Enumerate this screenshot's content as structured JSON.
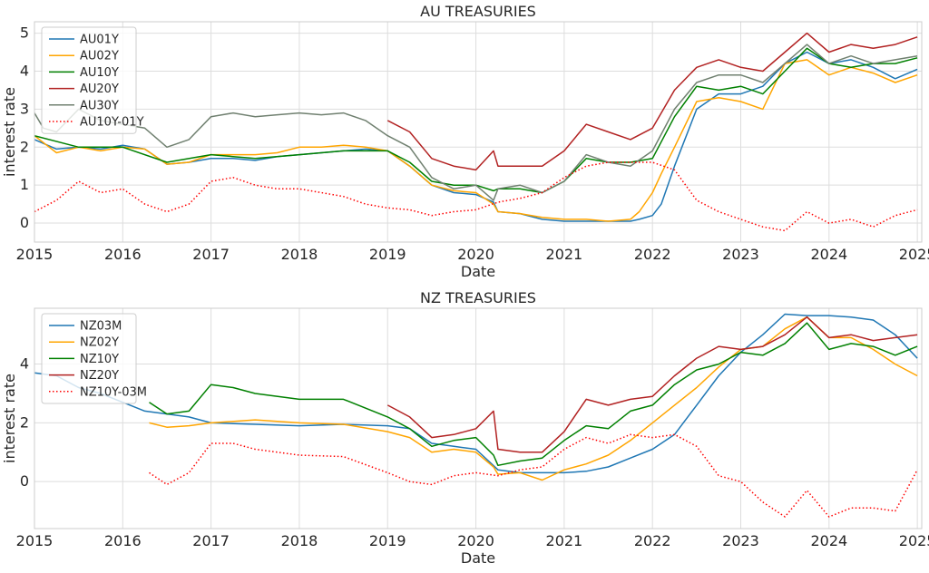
{
  "chart_data": [
    {
      "type": "line",
      "title": "AU TREASURIES",
      "xlabel": "Date",
      "ylabel": "interest rate",
      "xlim": [
        2015.0,
        2025.05
      ],
      "ylim": [
        -0.5,
        5.3
      ],
      "xticks": [
        2015,
        2016,
        2017,
        2018,
        2019,
        2020,
        2021,
        2022,
        2023,
        2024,
        2025
      ],
      "yticks": [
        0,
        1,
        2,
        3,
        4,
        5
      ],
      "grid": true,
      "legend_position": "top-left",
      "series": [
        {
          "name": "AU01Y",
          "color": "#1f77b4",
          "style": "solid",
          "x": [
            2015.0,
            2015.25,
            2015.5,
            2015.75,
            2016.0,
            2016.25,
            2016.5,
            2016.75,
            2017.0,
            2017.25,
            2017.5,
            2017.75,
            2018.0,
            2018.25,
            2018.5,
            2018.75,
            2019.0,
            2019.25,
            2019.5,
            2019.75,
            2020.0,
            2020.2,
            2020.25,
            2020.5,
            2020.75,
            2021.0,
            2021.25,
            2021.5,
            2021.75,
            2021.85,
            2022.0,
            2022.1,
            2022.25,
            2022.5,
            2022.75,
            2023.0,
            2023.25,
            2023.5,
            2023.75,
            2024.0,
            2024.25,
            2024.5,
            2024.75,
            2025.0
          ],
          "y": [
            2.2,
            1.95,
            2.0,
            1.95,
            2.05,
            1.95,
            1.55,
            1.6,
            1.7,
            1.7,
            1.65,
            1.75,
            1.8,
            1.85,
            1.9,
            1.95,
            1.9,
            1.5,
            1.0,
            0.8,
            0.75,
            0.55,
            0.3,
            0.25,
            0.1,
            0.05,
            0.05,
            0.05,
            0.05,
            0.1,
            0.2,
            0.5,
            1.5,
            3.0,
            3.4,
            3.4,
            3.6,
            4.2,
            4.5,
            4.2,
            4.3,
            4.1,
            3.8,
            4.05
          ]
        },
        {
          "name": "AU02Y",
          "color": "#ffa500",
          "style": "solid",
          "x": [
            2015.0,
            2015.25,
            2015.5,
            2015.75,
            2016.0,
            2016.25,
            2016.5,
            2016.75,
            2017.0,
            2017.25,
            2017.5,
            2017.75,
            2018.0,
            2018.25,
            2018.5,
            2018.75,
            2019.0,
            2019.25,
            2019.5,
            2019.75,
            2020.0,
            2020.2,
            2020.25,
            2020.5,
            2020.75,
            2021.0,
            2021.25,
            2021.5,
            2021.75,
            2021.85,
            2022.0,
            2022.1,
            2022.25,
            2022.5,
            2022.75,
            2023.0,
            2023.25,
            2023.5,
            2023.75,
            2024.0,
            2024.25,
            2024.5,
            2024.75,
            2025.0
          ],
          "y": [
            2.3,
            1.85,
            2.0,
            1.9,
            2.0,
            1.95,
            1.55,
            1.6,
            1.8,
            1.8,
            1.8,
            1.85,
            2.0,
            2.0,
            2.05,
            2.0,
            1.9,
            1.5,
            1.0,
            0.85,
            0.8,
            0.5,
            0.3,
            0.25,
            0.15,
            0.1,
            0.1,
            0.05,
            0.1,
            0.3,
            0.8,
            1.3,
            2.0,
            3.2,
            3.3,
            3.2,
            3.0,
            4.2,
            4.3,
            3.9,
            4.1,
            3.95,
            3.7,
            3.9
          ]
        },
        {
          "name": "AU10Y",
          "color": "#008000",
          "style": "solid",
          "x": [
            2015.0,
            2015.5,
            2016.0,
            2016.5,
            2017.0,
            2017.5,
            2018.0,
            2018.5,
            2019.0,
            2019.25,
            2019.5,
            2019.75,
            2020.0,
            2020.2,
            2020.25,
            2020.5,
            2020.75,
            2021.0,
            2021.25,
            2021.5,
            2021.75,
            2022.0,
            2022.25,
            2022.5,
            2022.75,
            2023.0,
            2023.25,
            2023.5,
            2023.75,
            2024.0,
            2024.25,
            2024.5,
            2024.75,
            2025.0
          ],
          "y": [
            2.3,
            2.0,
            2.0,
            1.6,
            1.8,
            1.7,
            1.8,
            1.9,
            1.9,
            1.6,
            1.1,
            1.0,
            1.0,
            0.85,
            0.9,
            0.9,
            0.8,
            1.1,
            1.7,
            1.6,
            1.6,
            1.7,
            2.8,
            3.6,
            3.5,
            3.6,
            3.4,
            4.0,
            4.6,
            4.2,
            4.1,
            4.2,
            4.2,
            4.35
          ]
        },
        {
          "name": "AU20Y",
          "color": "#b22222",
          "style": "solid",
          "x": [
            2019.0,
            2019.25,
            2019.5,
            2019.75,
            2020.0,
            2020.2,
            2020.25,
            2020.5,
            2020.75,
            2021.0,
            2021.25,
            2021.5,
            2021.75,
            2022.0,
            2022.25,
            2022.5,
            2022.75,
            2023.0,
            2023.25,
            2023.5,
            2023.75,
            2024.0,
            2024.25,
            2024.5,
            2024.75,
            2025.0
          ],
          "y": [
            2.7,
            2.4,
            1.7,
            1.5,
            1.4,
            1.9,
            1.5,
            1.5,
            1.5,
            1.9,
            2.6,
            2.4,
            2.2,
            2.5,
            3.5,
            4.1,
            4.3,
            4.1,
            4.0,
            4.5,
            5.0,
            4.5,
            4.7,
            4.6,
            4.7,
            4.9
          ]
        },
        {
          "name": "AU30Y",
          "color": "#708070",
          "style": "solid",
          "x": [
            2015.0,
            2015.1,
            2015.25,
            2015.5,
            2015.75,
            2016.0,
            2016.25,
            2016.5,
            2016.75,
            2017.0,
            2017.25,
            2017.5,
            2017.75,
            2018.0,
            2018.25,
            2018.5,
            2018.75,
            2019.0,
            2019.25,
            2019.5,
            2019.75,
            2020.0,
            2020.2,
            2020.25,
            2020.5,
            2020.75,
            2021.0,
            2021.25,
            2021.5,
            2021.75,
            2022.0,
            2022.25,
            2022.5,
            2022.75,
            2023.0,
            2023.25,
            2023.5,
            2023.75,
            2024.0,
            2024.25,
            2024.5,
            2024.75,
            2025.0
          ],
          "y": [
            2.9,
            2.5,
            2.4,
            3.0,
            2.7,
            2.6,
            2.5,
            2.0,
            2.2,
            2.8,
            2.9,
            2.8,
            2.85,
            2.9,
            2.85,
            2.9,
            2.7,
            2.3,
            2.0,
            1.2,
            0.9,
            1.0,
            0.6,
            0.9,
            1.0,
            0.8,
            1.1,
            1.8,
            1.6,
            1.5,
            1.9,
            3.0,
            3.7,
            3.9,
            3.9,
            3.7,
            4.2,
            4.7,
            4.2,
            4.4,
            4.2,
            4.3,
            4.4
          ]
        },
        {
          "name": "AU10Y-01Y",
          "color": "#ff0000",
          "style": "dotted",
          "x": [
            2015.0,
            2015.25,
            2015.5,
            2015.75,
            2016.0,
            2016.25,
            2016.5,
            2016.75,
            2017.0,
            2017.25,
            2017.5,
            2017.75,
            2018.0,
            2018.25,
            2018.5,
            2018.75,
            2019.0,
            2019.25,
            2019.5,
            2019.75,
            2020.0,
            2020.25,
            2020.5,
            2020.75,
            2021.0,
            2021.25,
            2021.5,
            2021.75,
            2022.0,
            2022.25,
            2022.5,
            2022.75,
            2023.0,
            2023.25,
            2023.5,
            2023.75,
            2024.0,
            2024.25,
            2024.5,
            2024.75,
            2025.0
          ],
          "y": [
            0.3,
            0.6,
            1.1,
            0.8,
            0.9,
            0.5,
            0.3,
            0.5,
            1.1,
            1.2,
            1.0,
            0.9,
            0.9,
            0.8,
            0.7,
            0.5,
            0.4,
            0.35,
            0.2,
            0.3,
            0.35,
            0.55,
            0.65,
            0.8,
            1.2,
            1.5,
            1.6,
            1.6,
            1.6,
            1.4,
            0.6,
            0.3,
            0.1,
            -0.1,
            -0.2,
            0.3,
            0.0,
            0.1,
            -0.1,
            0.2,
            0.35
          ]
        }
      ]
    },
    {
      "type": "line",
      "title": "NZ TREASURIES",
      "xlabel": "Date",
      "ylabel": "interest rate",
      "xlim": [
        2015.0,
        2025.05
      ],
      "ylim": [
        -1.6,
        5.9
      ],
      "xticks": [
        2015,
        2016,
        2017,
        2018,
        2019,
        2020,
        2021,
        2022,
        2023,
        2024,
        2025
      ],
      "yticks": [
        0,
        2,
        4
      ],
      "grid": true,
      "legend_position": "top-left",
      "series": [
        {
          "name": "NZ03M",
          "color": "#1f77b4",
          "style": "solid",
          "x": [
            2015.0,
            2015.25,
            2015.5,
            2015.75,
            2016.0,
            2016.25,
            2016.5,
            2016.75,
            2017.0,
            2017.5,
            2018.0,
            2018.5,
            2019.0,
            2019.25,
            2019.5,
            2019.75,
            2020.0,
            2020.25,
            2020.5,
            2020.75,
            2021.0,
            2021.25,
            2021.5,
            2021.75,
            2022.0,
            2022.25,
            2022.5,
            2022.75,
            2023.0,
            2023.25,
            2023.5,
            2023.75,
            2024.0,
            2024.25,
            2024.5,
            2024.75,
            2025.0
          ],
          "y": [
            3.7,
            3.6,
            3.2,
            3.0,
            2.7,
            2.4,
            2.3,
            2.2,
            2.0,
            1.95,
            1.9,
            1.95,
            1.9,
            1.8,
            1.3,
            1.2,
            1.1,
            0.4,
            0.3,
            0.3,
            0.3,
            0.35,
            0.5,
            0.8,
            1.1,
            1.6,
            2.6,
            3.6,
            4.4,
            5.0,
            5.7,
            5.65,
            5.65,
            5.6,
            5.5,
            5.0,
            4.2
          ]
        },
        {
          "name": "NZ02Y",
          "color": "#ffa500",
          "style": "solid",
          "x": [
            2016.3,
            2016.5,
            2016.75,
            2017.0,
            2017.5,
            2018.0,
            2018.5,
            2019.0,
            2019.25,
            2019.5,
            2019.75,
            2020.0,
            2020.2,
            2020.25,
            2020.5,
            2020.75,
            2021.0,
            2021.25,
            2021.5,
            2021.75,
            2022.0,
            2022.25,
            2022.5,
            2022.75,
            2023.0,
            2023.25,
            2023.5,
            2023.75,
            2024.0,
            2024.25,
            2024.5,
            2024.75,
            2025.0
          ],
          "y": [
            2.0,
            1.85,
            1.9,
            2.0,
            2.1,
            2.0,
            1.95,
            1.7,
            1.5,
            1.0,
            1.1,
            1.0,
            0.5,
            0.25,
            0.3,
            0.05,
            0.4,
            0.6,
            0.9,
            1.4,
            2.0,
            2.6,
            3.2,
            3.9,
            4.5,
            4.6,
            5.2,
            5.6,
            4.9,
            4.9,
            4.5,
            4.0,
            3.6
          ]
        },
        {
          "name": "NZ10Y",
          "color": "#008000",
          "style": "solid",
          "x": [
            2016.3,
            2016.5,
            2016.75,
            2017.0,
            2017.25,
            2017.5,
            2018.0,
            2018.5,
            2019.0,
            2019.25,
            2019.5,
            2019.75,
            2020.0,
            2020.2,
            2020.25,
            2020.5,
            2020.75,
            2021.0,
            2021.25,
            2021.5,
            2021.75,
            2022.0,
            2022.25,
            2022.5,
            2022.75,
            2023.0,
            2023.25,
            2023.5,
            2023.75,
            2024.0,
            2024.25,
            2024.5,
            2024.75,
            2025.0
          ],
          "y": [
            2.7,
            2.3,
            2.4,
            3.3,
            3.2,
            3.0,
            2.8,
            2.8,
            2.2,
            1.8,
            1.2,
            1.4,
            1.5,
            0.9,
            0.55,
            0.7,
            0.8,
            1.4,
            1.9,
            1.8,
            2.4,
            2.6,
            3.3,
            3.8,
            4.0,
            4.4,
            4.3,
            4.7,
            5.4,
            4.5,
            4.7,
            4.6,
            4.3,
            4.6
          ]
        },
        {
          "name": "NZ20Y",
          "color": "#b22222",
          "style": "solid",
          "x": [
            2019.0,
            2019.25,
            2019.5,
            2019.75,
            2020.0,
            2020.2,
            2020.25,
            2020.5,
            2020.75,
            2021.0,
            2021.25,
            2021.5,
            2021.75,
            2022.0,
            2022.25,
            2022.5,
            2022.75,
            2023.0,
            2023.25,
            2023.5,
            2023.75,
            2024.0,
            2024.25,
            2024.5,
            2024.75,
            2025.0
          ],
          "y": [
            2.6,
            2.2,
            1.5,
            1.6,
            1.8,
            2.4,
            1.1,
            1.0,
            1.0,
            1.7,
            2.8,
            2.6,
            2.8,
            2.9,
            3.6,
            4.2,
            4.6,
            4.5,
            4.6,
            5.0,
            5.6,
            4.9,
            5.0,
            4.8,
            4.9,
            5.0
          ]
        },
        {
          "name": "NZ10Y-03M",
          "color": "#ff0000",
          "style": "dotted",
          "x": [
            2016.3,
            2016.5,
            2016.75,
            2017.0,
            2017.25,
            2017.5,
            2018.0,
            2018.5,
            2019.0,
            2019.25,
            2019.5,
            2019.75,
            2020.0,
            2020.25,
            2020.5,
            2020.75,
            2021.0,
            2021.25,
            2021.5,
            2021.75,
            2022.0,
            2022.25,
            2022.5,
            2022.75,
            2023.0,
            2023.25,
            2023.5,
            2023.75,
            2024.0,
            2024.25,
            2024.5,
            2024.75,
            2025.0
          ],
          "y": [
            0.3,
            -0.1,
            0.3,
            1.3,
            1.3,
            1.1,
            0.9,
            0.85,
            0.3,
            0.0,
            -0.1,
            0.2,
            0.3,
            0.2,
            0.4,
            0.5,
            1.1,
            1.5,
            1.3,
            1.6,
            1.5,
            1.6,
            1.2,
            0.2,
            0.0,
            -0.7,
            -1.2,
            -0.3,
            -1.2,
            -0.9,
            -0.9,
            -1.0,
            0.4
          ]
        }
      ]
    }
  ]
}
